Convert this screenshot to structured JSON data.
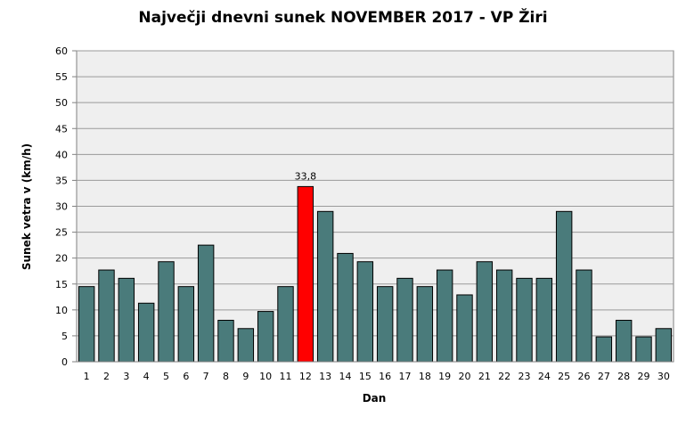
{
  "chart_data": {
    "type": "bar",
    "title": "Največji dnevni sunek NOVEMBER 2017 - VP Žiri",
    "xlabel": "Dan",
    "ylabel": "Sunek vetra v (km/h)",
    "ylim": [
      0,
      60
    ],
    "yticks": [
      "0",
      "5",
      "10",
      "15",
      "20",
      "25",
      "30",
      "35",
      "40",
      "45",
      "50",
      "55",
      "60"
    ],
    "categories": [
      "1",
      "2",
      "3",
      "4",
      "5",
      "6",
      "7",
      "8",
      "9",
      "10",
      "11",
      "12",
      "13",
      "14",
      "15",
      "16",
      "17",
      "18",
      "19",
      "20",
      "21",
      "22",
      "23",
      "24",
      "25",
      "26",
      "27",
      "28",
      "29",
      "30"
    ],
    "values": [
      14.5,
      17.7,
      16.1,
      11.3,
      19.3,
      14.5,
      22.5,
      8.0,
      6.4,
      9.7,
      14.5,
      33.8,
      29.0,
      20.9,
      19.3,
      14.5,
      16.1,
      14.5,
      17.7,
      12.9,
      19.3,
      17.7,
      16.1,
      16.1,
      29.0,
      17.7,
      4.8,
      8.0,
      4.8,
      6.4
    ],
    "highlight_index": 11,
    "highlight_label": "33,8",
    "colors": {
      "bar": "#4a7b7b",
      "highlight": "#ff0000",
      "plot_bg": "#efefef",
      "grid": "#9a9a9a"
    },
    "grid": true,
    "legend": "none"
  }
}
